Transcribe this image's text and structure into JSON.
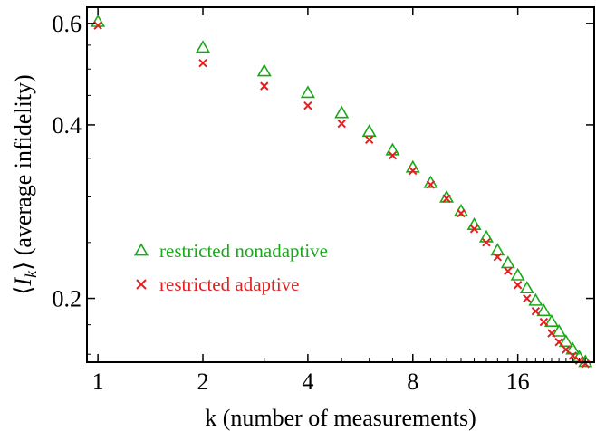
{
  "chart_data": {
    "type": "scatter",
    "title": "",
    "xlabel": "k (number of measurements)",
    "ylabel_parts": [
      "⟨",
      "I",
      "k",
      "⟩ (average infidelity)"
    ],
    "x_scale": "log2",
    "y_scale": "log",
    "xlim": [
      0.93,
      26.5
    ],
    "ylim": [
      0.155,
      0.64
    ],
    "x_ticks": [
      1,
      2,
      4,
      8,
      16
    ],
    "x_tick_labels": [
      "1",
      "2",
      "4",
      "8",
      "16"
    ],
    "y_ticks": [
      0.2,
      0.4,
      0.6
    ],
    "y_tick_labels": [
      "0.2",
      "0.4",
      "0.6"
    ],
    "grid": false,
    "legend_position": "middle-left",
    "series": [
      {
        "name": "restricted nonadaptive",
        "marker": "triangle",
        "color": "#1aa81a",
        "x": [
          1,
          2,
          3,
          4,
          5,
          6,
          7,
          8,
          9,
          10,
          11,
          12,
          13,
          14,
          15,
          16,
          17,
          18,
          19,
          20,
          21,
          22,
          23,
          24,
          25
        ],
        "y": [
          0.603,
          0.544,
          0.495,
          0.454,
          0.419,
          0.389,
          0.361,
          0.337,
          0.317,
          0.299,
          0.283,
          0.268,
          0.255,
          0.242,
          0.23,
          0.219,
          0.208,
          0.198,
          0.19,
          0.182,
          0.175,
          0.168,
          0.163,
          0.158,
          0.155
        ]
      },
      {
        "name": "restricted adaptive",
        "marker": "x",
        "color": "#e02020",
        "x": [
          1,
          2,
          3,
          4,
          5,
          6,
          7,
          8,
          9,
          10,
          11,
          12,
          13,
          14,
          15,
          16,
          17,
          18,
          19,
          20,
          21,
          22,
          23,
          24,
          25
        ],
        "y": [
          0.595,
          0.512,
          0.467,
          0.432,
          0.402,
          0.377,
          0.354,
          0.333,
          0.315,
          0.298,
          0.281,
          0.264,
          0.25,
          0.236,
          0.223,
          0.211,
          0.2,
          0.19,
          0.182,
          0.174,
          0.168,
          0.163,
          0.159,
          0.156,
          0.154
        ]
      }
    ]
  }
}
